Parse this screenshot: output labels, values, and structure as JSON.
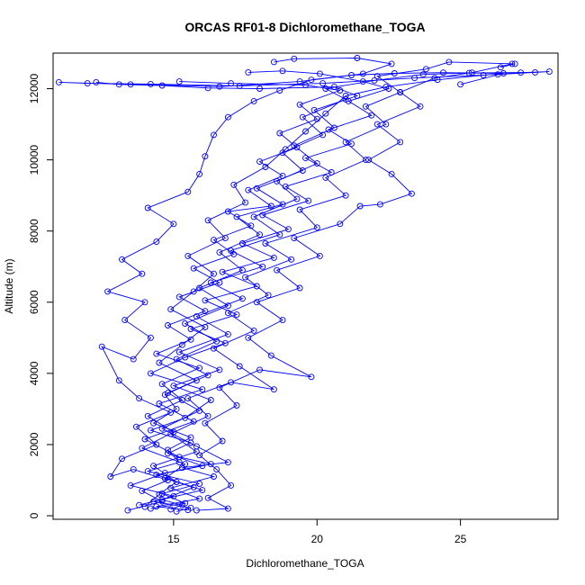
{
  "chart_data": {
    "type": "line",
    "title": "ORCAS RF01-8 Dichloromethane_TOGA",
    "xlabel": "Dichloromethane_TOGA",
    "ylabel": "Altitude (m)",
    "xlim": [
      10.8,
      28.4
    ],
    "ylim": [
      -100,
      13000
    ],
    "x_ticks": [
      15,
      20,
      25
    ],
    "y_ticks": [
      0,
      2000,
      4000,
      6000,
      8000,
      10000,
      12000
    ],
    "grid": false,
    "legend": "none",
    "series_color": "#0000ff",
    "marker": "open-circle",
    "series": [
      {
        "values": [
          [
            14.2,
            200
          ],
          [
            15.4,
            350
          ],
          [
            14.6,
            620
          ],
          [
            15.9,
            900
          ],
          [
            14.1,
            1250
          ],
          [
            15.2,
            1500
          ],
          [
            14.8,
            1850
          ],
          [
            15.6,
            2200
          ],
          [
            14.3,
            2600
          ],
          [
            15.1,
            3000
          ],
          [
            14.7,
            3400
          ],
          [
            15.8,
            3800
          ],
          [
            14.5,
            4300
          ],
          [
            15.3,
            4800
          ],
          [
            16.1,
            5300
          ],
          [
            14.9,
            5800
          ],
          [
            15.7,
            6300
          ],
          [
            16.4,
            6800
          ],
          [
            15.5,
            7300
          ],
          [
            16.8,
            7800
          ],
          [
            16.2,
            8300
          ],
          [
            17.5,
            8800
          ],
          [
            17.1,
            9300
          ],
          [
            18.2,
            9800
          ],
          [
            18.9,
            10300
          ],
          [
            19.6,
            10800
          ],
          [
            20.3,
            11300
          ],
          [
            21.0,
            11800
          ],
          [
            22.4,
            12050
          ],
          [
            24.2,
            12250
          ],
          [
            25.8,
            12380
          ],
          [
            27.1,
            12450
          ],
          [
            28.1,
            12480
          ],
          [
            26.3,
            12400
          ],
          [
            23.4,
            12300
          ],
          [
            20.2,
            12150
          ],
          [
            17.3,
            12080
          ],
          [
            14.2,
            12130
          ],
          [
            12.0,
            12150
          ],
          [
            11.0,
            12180
          ],
          [
            13.5,
            12120
          ],
          [
            16.6,
            12060
          ],
          [
            19.4,
            12200
          ],
          [
            21.6,
            12420
          ],
          [
            22.6,
            12700
          ],
          [
            21.4,
            12860
          ],
          [
            19.2,
            12840
          ],
          [
            18.5,
            12750
          ]
        ]
      },
      {
        "values": [
          [
            13.4,
            150
          ],
          [
            14.6,
            400
          ],
          [
            13.9,
            700
          ],
          [
            14.8,
            1000
          ],
          [
            13.6,
            1300
          ],
          [
            12.8,
            1100
          ],
          [
            13.2,
            1600
          ],
          [
            14.4,
            2000
          ],
          [
            13.7,
            2500
          ],
          [
            14.9,
            2900
          ],
          [
            13.8,
            3300
          ],
          [
            13.1,
            3800
          ],
          [
            12.5,
            4750
          ],
          [
            13.6,
            4400
          ],
          [
            14.2,
            5000
          ],
          [
            13.3,
            5500
          ],
          [
            14.0,
            6000
          ],
          [
            12.7,
            6300
          ],
          [
            13.9,
            6800
          ],
          [
            13.2,
            7200
          ],
          [
            14.4,
            7700
          ],
          [
            15.0,
            8200
          ],
          [
            14.1,
            8650
          ],
          [
            15.5,
            9100
          ],
          [
            15.9,
            9600
          ],
          [
            16.1,
            10100
          ],
          [
            16.4,
            10700
          ],
          [
            16.9,
            11200
          ],
          [
            17.8,
            11650
          ],
          [
            18.7,
            11950
          ],
          [
            19.8,
            12250
          ],
          [
            21.2,
            12380
          ],
          [
            22.7,
            12430
          ],
          [
            24.4,
            12450
          ],
          [
            26.5,
            12430
          ],
          [
            25.0,
            12120
          ]
        ]
      },
      {
        "values": [
          [
            15.8,
            150
          ],
          [
            16.9,
            200
          ],
          [
            16.2,
            500
          ],
          [
            17.0,
            850
          ],
          [
            16.5,
            1300
          ],
          [
            15.9,
            1700
          ],
          [
            16.7,
            2100
          ],
          [
            16.1,
            2600
          ],
          [
            17.2,
            3100
          ],
          [
            16.6,
            3600
          ],
          [
            18.0,
            4100
          ],
          [
            19.8,
            3900
          ],
          [
            18.4,
            4500
          ],
          [
            17.6,
            5000
          ],
          [
            18.8,
            5500
          ],
          [
            17.9,
            6000
          ],
          [
            19.4,
            6400
          ],
          [
            18.6,
            6900
          ],
          [
            20.1,
            7300
          ],
          [
            19.2,
            7800
          ],
          [
            20.8,
            8200
          ],
          [
            21.5,
            8700
          ],
          [
            22.2,
            8750
          ],
          [
            23.3,
            9050
          ],
          [
            22.6,
            9600
          ],
          [
            21.8,
            10000
          ],
          [
            22.9,
            10500
          ],
          [
            22.1,
            11000
          ],
          [
            23.6,
            11500
          ],
          [
            22.9,
            11900
          ],
          [
            24.1,
            12300
          ],
          [
            25.4,
            12450
          ],
          [
            26.8,
            12700
          ]
        ]
      },
      {
        "values": [
          [
            14.9,
            180
          ],
          [
            15.3,
            300
          ],
          [
            14.6,
            450
          ],
          [
            15.7,
            800
          ],
          [
            14.4,
            1150
          ],
          [
            16.0,
            1400
          ],
          [
            14.8,
            1750
          ],
          [
            15.6,
            2050
          ],
          [
            14.2,
            2400
          ],
          [
            15.4,
            2750
          ],
          [
            16.3,
            3250
          ],
          [
            15.0,
            3650
          ],
          [
            16.6,
            4100
          ],
          [
            15.2,
            4600
          ],
          [
            16.9,
            5100
          ],
          [
            15.8,
            5600
          ],
          [
            17.4,
            6100
          ],
          [
            16.3,
            6550
          ],
          [
            18.1,
            7000
          ],
          [
            17.0,
            7450
          ],
          [
            18.7,
            7900
          ],
          [
            17.8,
            8400
          ],
          [
            19.3,
            8900
          ],
          [
            18.6,
            9400
          ],
          [
            20.0,
            9900
          ],
          [
            19.2,
            10400
          ],
          [
            20.6,
            10900
          ],
          [
            19.9,
            11400
          ],
          [
            21.4,
            11800
          ],
          [
            20.6,
            12050
          ],
          [
            18.0,
            12000
          ],
          [
            16.2,
            12020
          ],
          [
            14.6,
            12090
          ],
          [
            13.1,
            12120
          ],
          [
            12.3,
            12180
          ]
        ]
      },
      {
        "values": [
          [
            14.0,
            250
          ],
          [
            14.5,
            600
          ],
          [
            15.1,
            950
          ],
          [
            14.3,
            1400
          ],
          [
            15.8,
            1800
          ],
          [
            14.9,
            2300
          ],
          [
            16.2,
            2800
          ],
          [
            15.5,
            3300
          ],
          [
            17.0,
            3750
          ],
          [
            18.5,
            3550
          ],
          [
            17.3,
            4200
          ],
          [
            16.4,
            4700
          ],
          [
            17.8,
            5200
          ],
          [
            16.9,
            5700
          ],
          [
            18.3,
            6200
          ],
          [
            17.5,
            6700
          ],
          [
            19.1,
            7200
          ],
          [
            18.2,
            7650
          ],
          [
            20.0,
            8100
          ],
          [
            19.4,
            8600
          ],
          [
            21.0,
            9000
          ],
          [
            20.3,
            9500
          ],
          [
            21.7,
            10000
          ],
          [
            21.0,
            10500
          ],
          [
            22.4,
            11000
          ],
          [
            21.7,
            11500
          ],
          [
            22.9,
            11900
          ],
          [
            22.1,
            12350
          ],
          [
            23.8,
            12550
          ],
          [
            24.6,
            12750
          ],
          [
            26.9,
            12700
          ],
          [
            26.4,
            12600
          ]
        ]
      },
      {
        "values": [
          [
            15.1,
            120
          ],
          [
            15.6,
            220
          ],
          [
            14.3,
            400
          ],
          [
            16.0,
            720
          ],
          [
            14.7,
            1050
          ],
          [
            15.4,
            1450
          ],
          [
            13.9,
            1900
          ],
          [
            15.0,
            2350
          ],
          [
            14.1,
            2800
          ],
          [
            15.3,
            3250
          ],
          [
            14.6,
            3700
          ],
          [
            15.9,
            4150
          ],
          [
            14.4,
            4550
          ],
          [
            15.6,
            4950
          ],
          [
            14.8,
            5350
          ],
          [
            16.1,
            5750
          ],
          [
            15.2,
            6150
          ],
          [
            16.6,
            6550
          ],
          [
            15.7,
            6950
          ],
          [
            17.1,
            7350
          ],
          [
            16.4,
            7750
          ],
          [
            17.7,
            8150
          ],
          [
            16.9,
            8550
          ],
          [
            18.4,
            8700
          ],
          [
            17.6,
            9150
          ],
          [
            18.8,
            9550
          ],
          [
            18.0,
            9950
          ],
          [
            19.3,
            10350
          ],
          [
            18.7,
            10750
          ],
          [
            20.0,
            11150
          ],
          [
            19.4,
            11550
          ],
          [
            20.8,
            11950
          ],
          [
            19.6,
            12100
          ],
          [
            17.0,
            12150
          ],
          [
            15.2,
            12200
          ]
        ]
      },
      {
        "values": [
          [
            13.8,
            300
          ],
          [
            15.0,
            550
          ],
          [
            13.5,
            850
          ],
          [
            14.7,
            1200
          ],
          [
            16.3,
            1450
          ],
          [
            15.2,
            1650
          ],
          [
            14.0,
            2150
          ],
          [
            15.7,
            2650
          ],
          [
            14.5,
            3150
          ],
          [
            16.0,
            3550
          ],
          [
            14.2,
            4000
          ],
          [
            15.4,
            4450
          ],
          [
            16.8,
            4850
          ],
          [
            15.6,
            5250
          ],
          [
            17.2,
            5650
          ],
          [
            16.1,
            6050
          ],
          [
            17.9,
            6450
          ],
          [
            16.7,
            6850
          ],
          [
            18.5,
            7250
          ],
          [
            17.4,
            7650
          ],
          [
            19.0,
            8050
          ],
          [
            18.1,
            8450
          ],
          [
            19.7,
            8850
          ],
          [
            18.9,
            9250
          ],
          [
            20.5,
            9650
          ],
          [
            19.6,
            10050
          ],
          [
            21.2,
            10450
          ],
          [
            20.4,
            10850
          ],
          [
            21.9,
            11250
          ],
          [
            21.1,
            11650
          ],
          [
            22.5,
            12000
          ],
          [
            21.6,
            12200
          ],
          [
            20.1,
            12420
          ],
          [
            18.8,
            12500
          ],
          [
            17.6,
            12460
          ]
        ]
      },
      {
        "values": [
          [
            15.5,
            160
          ],
          [
            14.4,
            260
          ],
          [
            15.9,
            480
          ],
          [
            14.9,
            780
          ],
          [
            16.4,
            1100
          ],
          [
            15.3,
            1350
          ],
          [
            16.9,
            1500
          ],
          [
            15.8,
            1950
          ],
          [
            14.6,
            2450
          ],
          [
            15.9,
            2950
          ],
          [
            14.8,
            3450
          ],
          [
            16.2,
            3950
          ],
          [
            15.1,
            4400
          ],
          [
            16.5,
            4900
          ],
          [
            15.4,
            5400
          ],
          [
            16.9,
            5900
          ],
          [
            15.9,
            6400
          ],
          [
            17.4,
            6900
          ],
          [
            16.6,
            7400
          ],
          [
            18.0,
            7900
          ],
          [
            17.2,
            8400
          ],
          [
            18.8,
            8750
          ],
          [
            17.9,
            9200
          ],
          [
            19.5,
            9700
          ],
          [
            18.8,
            10200
          ],
          [
            20.2,
            10700
          ],
          [
            19.5,
            11200
          ],
          [
            21.0,
            11700
          ],
          [
            20.3,
            12000
          ],
          [
            22.0,
            12230
          ],
          [
            23.7,
            12400
          ],
          [
            25.3,
            12440
          ],
          [
            27.6,
            12460
          ]
        ]
      }
    ]
  }
}
